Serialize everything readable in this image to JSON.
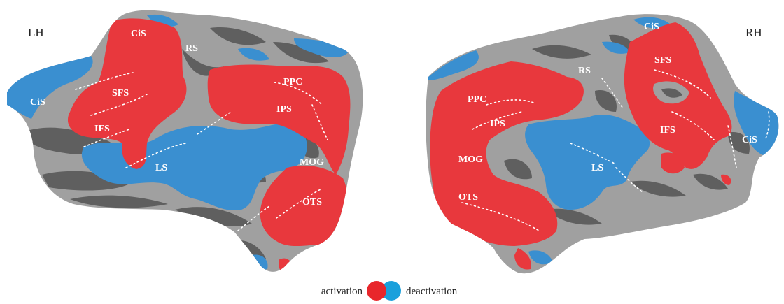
{
  "hemispheres": {
    "left": {
      "label": "LH",
      "regions": [
        "CiS",
        "RS",
        "SFS",
        "IFS",
        "LS",
        "PPC",
        "IPS",
        "MOG",
        "OTS",
        "CiS"
      ]
    },
    "right": {
      "label": "RH",
      "regions": [
        "CiS",
        "SFS",
        "RS",
        "PPC",
        "IPS",
        "IFS",
        "MOG",
        "LS",
        "OTS",
        "CiS"
      ]
    }
  },
  "legend": {
    "activation_label": "activation",
    "deactivation_label": "deactivation"
  },
  "colors": {
    "activation": "#e8383d",
    "deactivation": "#3a8fd0",
    "gyri": "#a0a0a0",
    "sulci": "#5f5f5f",
    "legend_activation": "#e8262b",
    "legend_deactivation": "#1aa0dc"
  }
}
